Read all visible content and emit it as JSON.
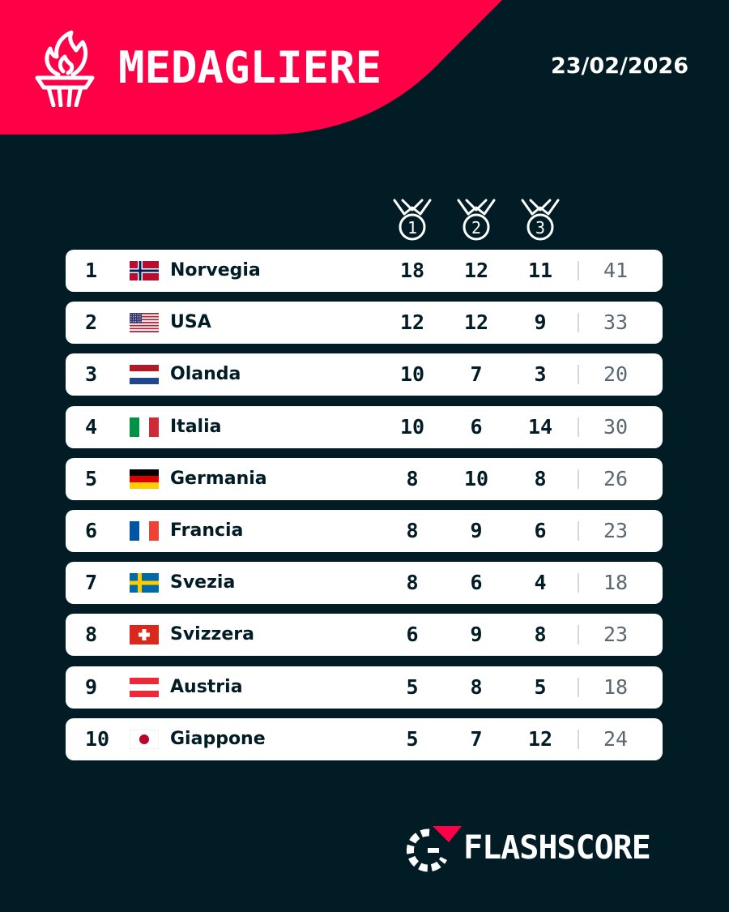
{
  "header": {
    "title": "MEDAGLIERE",
    "date": "23/02/2026",
    "accent_color": "#ff0046",
    "icon": "torch-icon"
  },
  "columns": {
    "medal_icons": [
      "gold-medal-icon",
      "silver-medal-icon",
      "bronze-medal-icon"
    ],
    "medal_labels": [
      "1",
      "2",
      "3"
    ]
  },
  "table": {
    "rows": [
      {
        "rank": "1",
        "flag": "norway",
        "country": "Norvegia",
        "gold": "18",
        "silver": "12",
        "bronze": "11",
        "total": "41"
      },
      {
        "rank": "2",
        "flag": "usa",
        "country": "USA",
        "gold": "12",
        "silver": "12",
        "bronze": "9",
        "total": "33"
      },
      {
        "rank": "3",
        "flag": "netherlands",
        "country": "Olanda",
        "gold": "10",
        "silver": "7",
        "bronze": "3",
        "total": "20"
      },
      {
        "rank": "4",
        "flag": "italy",
        "country": "Italia",
        "gold": "10",
        "silver": "6",
        "bronze": "14",
        "total": "30"
      },
      {
        "rank": "5",
        "flag": "germany",
        "country": "Germania",
        "gold": "8",
        "silver": "10",
        "bronze": "8",
        "total": "26"
      },
      {
        "rank": "6",
        "flag": "france",
        "country": "Francia",
        "gold": "8",
        "silver": "9",
        "bronze": "6",
        "total": "23"
      },
      {
        "rank": "7",
        "flag": "sweden",
        "country": "Svezia",
        "gold": "8",
        "silver": "6",
        "bronze": "4",
        "total": "18"
      },
      {
        "rank": "8",
        "flag": "switzerland",
        "country": "Svizzera",
        "gold": "6",
        "silver": "9",
        "bronze": "8",
        "total": "23"
      },
      {
        "rank": "9",
        "flag": "austria",
        "country": "Austria",
        "gold": "5",
        "silver": "8",
        "bronze": "5",
        "total": "18"
      },
      {
        "rank": "10",
        "flag": "japan",
        "country": "Giappone",
        "gold": "5",
        "silver": "7",
        "bronze": "12",
        "total": "24"
      }
    ]
  },
  "footer": {
    "brand": "FLASHSCORE",
    "logo_icon": "flashscore-logo-icon"
  }
}
